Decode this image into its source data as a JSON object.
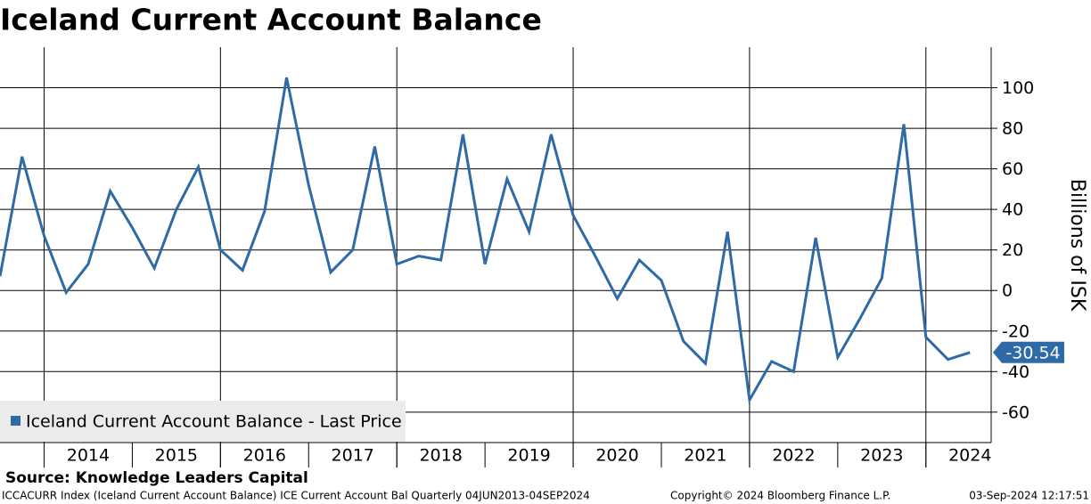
{
  "chart_data": {
    "type": "line",
    "title": "Iceland Current Account Balance",
    "y_axis_label": "Billions of ISK",
    "source": "Source: Knowledge Leaders Capital",
    "footer_left": "ICCACURR Index (Iceland Current Account Balance) ICE Current Account Bal  Quarterly 04JUN2013-04SEP2024",
    "footer_center": "Copyright© 2024 Bloomberg Finance L.P.",
    "footer_right": "03-Sep-2024 12:17:51",
    "x": [
      2013.5,
      2013.75,
      2014,
      2014.25,
      2014.5,
      2014.75,
      2015,
      2015.25,
      2015.5,
      2015.75,
      2016,
      2016.25,
      2016.5,
      2016.75,
      2017,
      2017.25,
      2017.5,
      2017.75,
      2018,
      2018.25,
      2018.5,
      2018.75,
      2019,
      2019.25,
      2019.5,
      2019.75,
      2020,
      2020.25,
      2020.5,
      2020.75,
      2021,
      2021.25,
      2021.5,
      2021.75,
      2022,
      2022.25,
      2022.5,
      2022.75,
      2023,
      2023.25,
      2023.5,
      2023.75,
      2024,
      2024.25,
      2024.5
    ],
    "series": [
      {
        "name": "Iceland Current Account Balance - Last Price",
        "color": "#2e6aa6",
        "values": [
          7,
          66,
          27,
          -1,
          13,
          49,
          31,
          11,
          40,
          61,
          20,
          10,
          39,
          105,
          52,
          9,
          20,
          71,
          13,
          17,
          15,
          77,
          13,
          55,
          29,
          77,
          37,
          17,
          -4,
          15,
          5,
          -25,
          -36,
          29,
          -54,
          -35,
          -40,
          26,
          -33,
          -14,
          6,
          82,
          -23,
          -34,
          -30.54
        ],
        "last_value_label": "-30.54"
      }
    ],
    "xlim": [
      2013.5,
      2024.74
    ],
    "xticks": [
      {
        "value": 2014.5,
        "label": "2014"
      },
      {
        "value": 2015.5,
        "label": "2015"
      },
      {
        "value": 2016.5,
        "label": "2016"
      },
      {
        "value": 2017.5,
        "label": "2017"
      },
      {
        "value": 2018.5,
        "label": "2018"
      },
      {
        "value": 2019.5,
        "label": "2019"
      },
      {
        "value": 2020.5,
        "label": "2020"
      },
      {
        "value": 2021.5,
        "label": "2021"
      },
      {
        "value": 2022.5,
        "label": "2022"
      },
      {
        "value": 2023.5,
        "label": "2023"
      },
      {
        "value": 2024.5,
        "label": "2024"
      }
    ],
    "xgrid": [
      2014,
      2016,
      2018,
      2020,
      2022,
      2024
    ],
    "ylim": [
      -75,
      120
    ],
    "yticks": [
      -60,
      -40,
      -20,
      0,
      20,
      40,
      60,
      80,
      100
    ],
    "grid": true
  }
}
